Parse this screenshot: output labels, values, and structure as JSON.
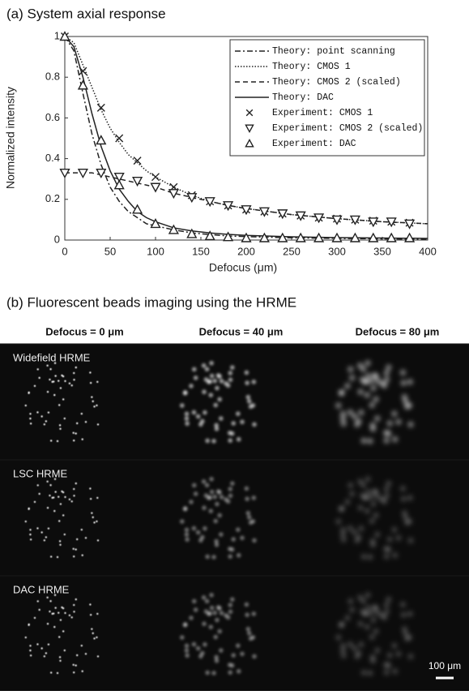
{
  "chart_data": {
    "type": "line",
    "title": "(a) System axial response",
    "xlabel": "Defocus (μm)",
    "ylabel": "Normalized intensity",
    "xlim": [
      0,
      400
    ],
    "xticks": [
      0,
      50,
      100,
      150,
      200,
      250,
      300,
      350,
      400
    ],
    "ylim": [
      0,
      1
    ],
    "yticks": [
      0,
      0.2,
      0.4,
      0.6,
      0.8,
      1
    ],
    "legend": "upper right",
    "series": [
      {
        "name": "Theory: point scanning",
        "color": "#222222",
        "style": "dashdot",
        "x": [
          0,
          10,
          20,
          30,
          40,
          50,
          60,
          70,
          80,
          90,
          100,
          120,
          140,
          160,
          180,
          200,
          250,
          300,
          350,
          400
        ],
        "values": [
          1,
          0.93,
          0.72,
          0.52,
          0.37,
          0.26,
          0.19,
          0.14,
          0.11,
          0.08,
          0.07,
          0.05,
          0.035,
          0.027,
          0.02,
          0.017,
          0.011,
          0.008,
          0.006,
          0.004
        ]
      },
      {
        "name": "Theory: CMOS 1",
        "color": "#222222",
        "style": "dotted",
        "x": [
          0,
          10,
          20,
          30,
          40,
          50,
          60,
          70,
          80,
          90,
          100,
          120,
          140,
          160,
          180,
          200,
          250,
          300,
          350,
          400
        ],
        "values": [
          1,
          0.97,
          0.86,
          0.75,
          0.64,
          0.55,
          0.48,
          0.42,
          0.38,
          0.34,
          0.31,
          0.26,
          0.22,
          0.19,
          0.17,
          0.155,
          0.125,
          0.105,
          0.09,
          0.08
        ]
      },
      {
        "name": "Theory: CMOS 2 (scaled)",
        "color": "#222222",
        "style": "dashed",
        "x": [
          0,
          10,
          20,
          30,
          40,
          50,
          60,
          70,
          80,
          90,
          100,
          120,
          140,
          160,
          180,
          200,
          250,
          300,
          350,
          400
        ],
        "values": [
          0.33,
          0.33,
          0.33,
          0.33,
          0.32,
          0.31,
          0.3,
          0.29,
          0.28,
          0.27,
          0.26,
          0.23,
          0.21,
          0.19,
          0.17,
          0.155,
          0.125,
          0.105,
          0.09,
          0.08
        ]
      },
      {
        "name": "Theory: DAC",
        "color": "#222222",
        "style": "solid",
        "x": [
          0,
          10,
          20,
          30,
          40,
          50,
          60,
          70,
          80,
          90,
          100,
          120,
          140,
          160,
          180,
          200,
          250,
          300,
          350,
          400
        ],
        "values": [
          1,
          0.95,
          0.8,
          0.62,
          0.46,
          0.34,
          0.25,
          0.19,
          0.14,
          0.11,
          0.09,
          0.06,
          0.045,
          0.035,
          0.028,
          0.023,
          0.016,
          0.012,
          0.01,
          0.008
        ]
      },
      {
        "name": "Experiment: CMOS 1",
        "color": "#222222",
        "marker": "x",
        "x": [
          0,
          20,
          40,
          60,
          80,
          100,
          120,
          140,
          160,
          180,
          200,
          220,
          240,
          260,
          280,
          300,
          320,
          340,
          360,
          380
        ],
        "values": [
          1,
          0.83,
          0.65,
          0.5,
          0.39,
          0.31,
          0.26,
          0.22,
          0.19,
          0.17,
          0.15,
          0.14,
          0.13,
          0.12,
          0.11,
          0.105,
          0.1,
          0.095,
          0.09,
          0.085
        ]
      },
      {
        "name": "Experiment: CMOS 2 (scaled)",
        "color": "#222222",
        "marker": "triangle-down",
        "x": [
          0,
          20,
          40,
          60,
          80,
          100,
          120,
          140,
          160,
          180,
          200,
          220,
          240,
          260,
          280,
          300,
          320,
          340,
          360,
          380
        ],
        "values": [
          0.33,
          0.33,
          0.33,
          0.31,
          0.29,
          0.26,
          0.23,
          0.21,
          0.19,
          0.17,
          0.15,
          0.14,
          0.13,
          0.12,
          0.11,
          0.1,
          0.1,
          0.09,
          0.09,
          0.08
        ]
      },
      {
        "name": "Experiment: DAC",
        "color": "#222222",
        "marker": "triangle-up",
        "x": [
          0,
          20,
          40,
          60,
          80,
          100,
          120,
          140,
          160,
          180,
          200,
          220,
          240,
          260,
          280,
          300,
          320,
          340,
          360,
          380
        ],
        "values": [
          1,
          0.76,
          0.49,
          0.27,
          0.15,
          0.08,
          0.05,
          0.03,
          0.02,
          0.015,
          0.01,
          0.01,
          0.01,
          0.01,
          0.01,
          0.01,
          0.01,
          0.01,
          0.01,
          0.01
        ]
      }
    ]
  },
  "panel_b": {
    "title": "(b) Fluorescent beads imaging using the HRME",
    "columns": [
      "Defocus = 0 μm",
      "Defocus = 40 μm",
      "Defocus = 80 μm"
    ],
    "rows": [
      "Widefield HRME",
      "LSC HRME",
      "DAC HRME"
    ],
    "scale_bar": "100 μm"
  }
}
